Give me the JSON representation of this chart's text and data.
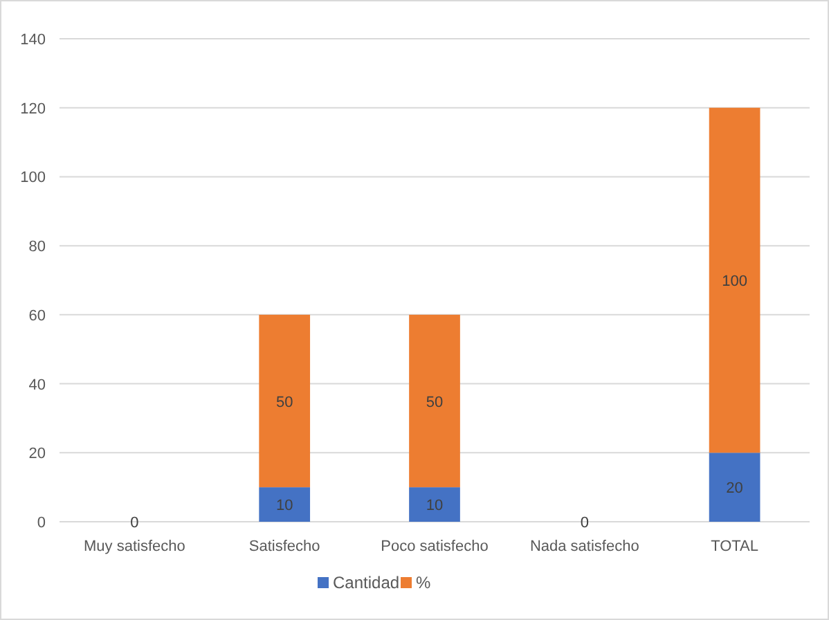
{
  "chart_data": {
    "type": "bar",
    "stacked": true,
    "categories": [
      "Muy satisfecho",
      "Satisfecho",
      "Poco satisfecho",
      "Nada satisfecho",
      "TOTAL"
    ],
    "series": [
      {
        "name": "Cantidad",
        "color": "#4472c4",
        "values": [
          0,
          10,
          10,
          0,
          20
        ],
        "value_labels": [
          "0",
          "10",
          "10",
          "0",
          "20"
        ]
      },
      {
        "name": "%",
        "color": "#ed7d31",
        "values": [
          0,
          50,
          50,
          0,
          100
        ],
        "value_labels": [
          null,
          "50",
          "50",
          null,
          "100"
        ]
      }
    ],
    "ylim": [
      0,
      140
    ],
    "yticks": [
      0,
      20,
      40,
      60,
      80,
      100,
      120,
      140
    ],
    "grid": "y",
    "legend": "bottom"
  }
}
